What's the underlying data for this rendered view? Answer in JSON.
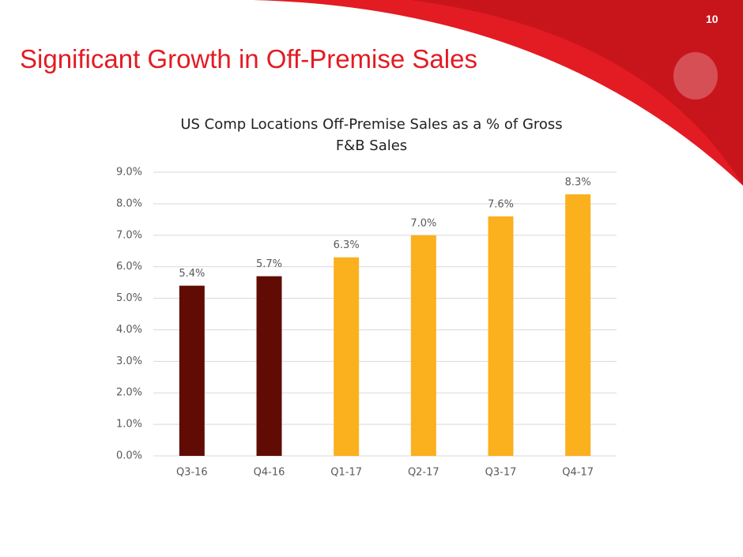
{
  "slide_title": "Significant Growth in Off-Premise Sales",
  "page_number": "10",
  "chart_data": {
    "type": "bar",
    "title": "US Comp Locations Off-Premise Sales as a % of Gross F&B Sales",
    "categories": [
      "Q3-16",
      "Q4-16",
      "Q1-17",
      "Q2-17",
      "Q3-17",
      "Q4-17"
    ],
    "values": [
      5.4,
      5.7,
      6.3,
      7.0,
      7.6,
      8.3
    ],
    "value_labels": [
      "5.4%",
      "5.7%",
      "6.3%",
      "7.0%",
      "7.6%",
      "8.3%"
    ],
    "colors": [
      "#600c05",
      "#600c05",
      "#fbb01e",
      "#fbb01e",
      "#fbb01e",
      "#fbb01e"
    ],
    "ylim": [
      0,
      9
    ],
    "yticks": [
      {
        "value": 0,
        "label": "0.0%"
      },
      {
        "value": 1,
        "label": "1.0%"
      },
      {
        "value": 2,
        "label": "2.0%"
      },
      {
        "value": 3,
        "label": "3.0%"
      },
      {
        "value": 4,
        "label": "4.0%"
      },
      {
        "value": 5,
        "label": "5.0%"
      },
      {
        "value": 6,
        "label": "6.0%"
      },
      {
        "value": 7,
        "label": "7.0%"
      },
      {
        "value": 8,
        "label": "8.0%"
      },
      {
        "value": 9,
        "label": "9.0%"
      }
    ],
    "grid": true
  }
}
